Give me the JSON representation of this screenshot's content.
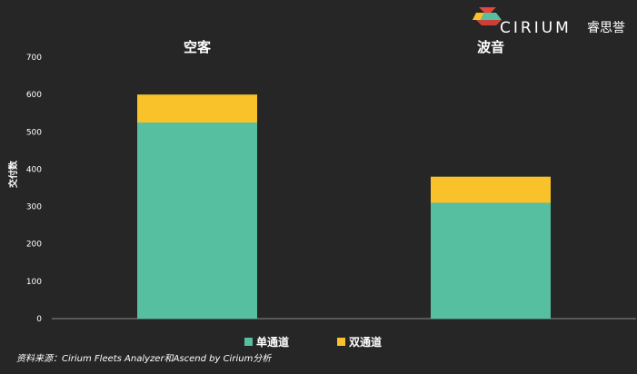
{
  "brand": {
    "name": "CIRIUM",
    "name_cn": "睿思誉"
  },
  "chart_data": {
    "type": "bar",
    "stacked": true,
    "categories": [
      "空客",
      "波音"
    ],
    "series": [
      {
        "name": "单通道",
        "values": [
          525,
          310
        ],
        "color": "#56bf9f"
      },
      {
        "name": "双通道",
        "values": [
          75,
          70
        ],
        "color": "#f9c22b"
      }
    ],
    "ylabel": "交付数",
    "ylim": [
      0,
      700
    ],
    "yticks": [
      0,
      100,
      200,
      300,
      400,
      500,
      600,
      700
    ],
    "grid": false,
    "legend_position": "bottom-center",
    "source": "资料来源：Cirium Fleets Analyzer和Ascend by Cirium分析"
  }
}
